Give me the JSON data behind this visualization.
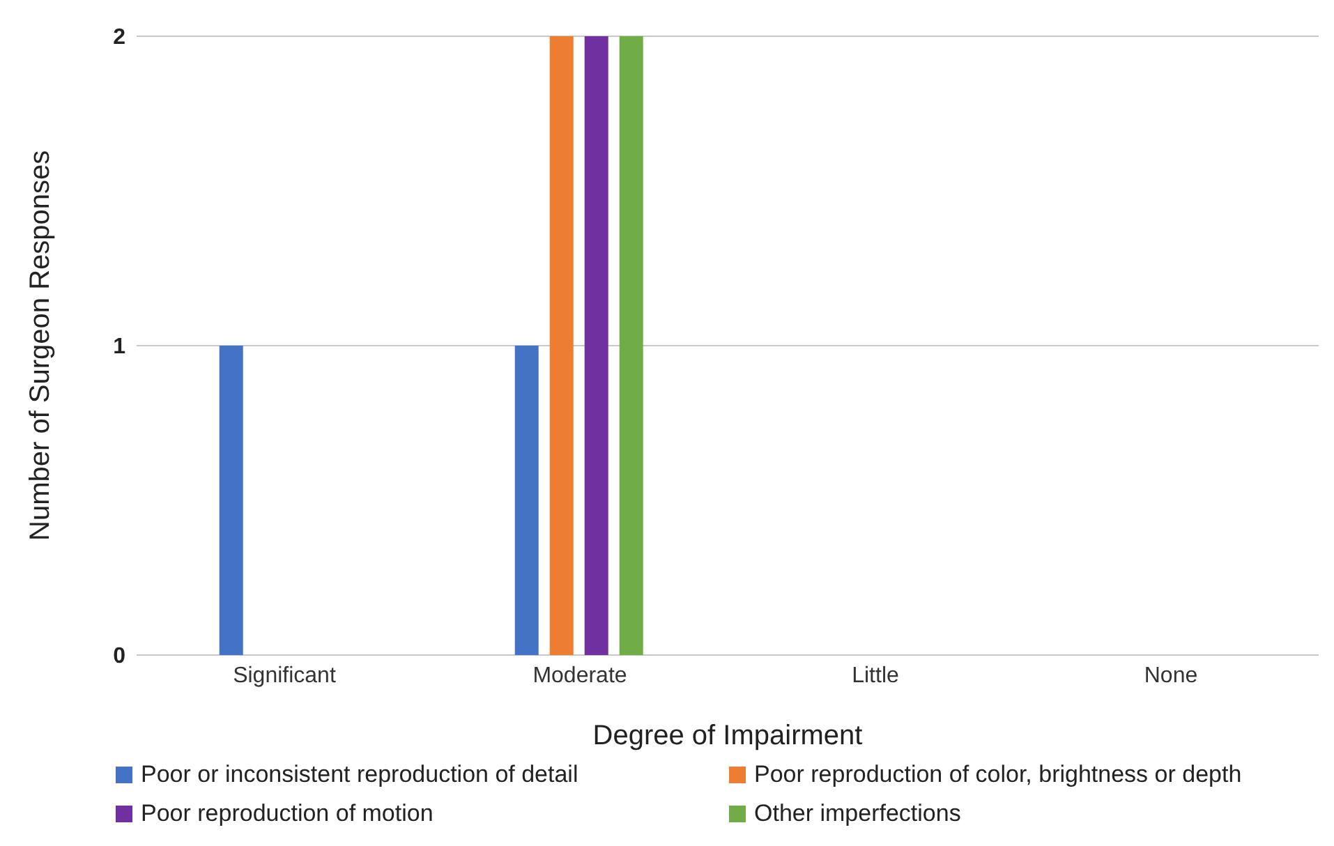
{
  "chart_data": {
    "type": "bar",
    "xlabel": "Degree of Impairment",
    "ylabel": "Number of Surgeon Responses",
    "categories": [
      "Significant",
      "Moderate",
      "Little",
      "None"
    ],
    "series": [
      {
        "name": "Poor or inconsistent reproduction of detail",
        "color": "#4472c4",
        "values": [
          1,
          1,
          0,
          0
        ]
      },
      {
        "name": "Poor reproduction of color, brightness or depth",
        "color": "#ed7d31",
        "values": [
          0,
          2,
          0,
          0
        ]
      },
      {
        "name": "Poor reproduction of motion",
        "color": "#7030a0",
        "values": [
          0,
          2,
          0,
          0
        ]
      },
      {
        "name": "Other imperfections",
        "color": "#70ad47",
        "values": [
          0,
          2,
          0,
          0
        ]
      }
    ],
    "ylim": [
      0,
      2
    ],
    "yticks": [
      0,
      1,
      2
    ],
    "grid": "y",
    "legend": "bottom"
  }
}
